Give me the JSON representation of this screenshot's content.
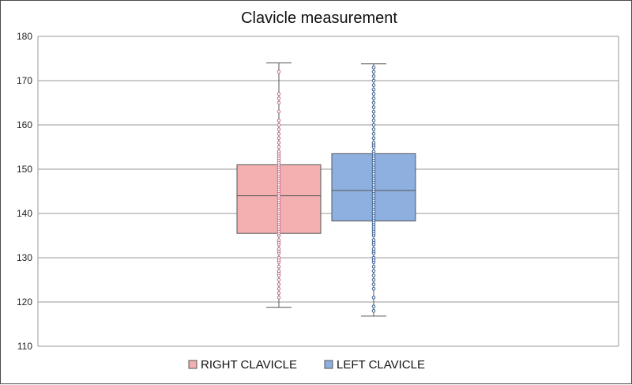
{
  "chart_data": {
    "type": "boxplot",
    "title": "Clavicle measurement",
    "xlabel": "",
    "ylabel": "",
    "ylim": [
      110,
      180
    ],
    "yticks": [
      110,
      120,
      130,
      140,
      150,
      160,
      170,
      180
    ],
    "grid": true,
    "legend_position": "bottom-center",
    "series": [
      {
        "name": "RIGHT CLAVICLE",
        "color": "#f4b0b0",
        "edge_color": "#555555",
        "point_color": "#c07090",
        "whisker_low": 118.8,
        "q1": 135.5,
        "median": 144.0,
        "q3": 151.0,
        "whisker_high": 174.0,
        "points": [
          121,
          122,
          123,
          124,
          125,
          126,
          126.5,
          127,
          128,
          129,
          129.5,
          130,
          131,
          131.5,
          132,
          133,
          133.5,
          134,
          135,
          135.5,
          136,
          136.5,
          137,
          137.5,
          138,
          138.5,
          139,
          139.5,
          140,
          140.5,
          141,
          141.5,
          142,
          142.5,
          143,
          143.5,
          144,
          144.5,
          145,
          145.5,
          146,
          146.5,
          147,
          147.5,
          148,
          148.5,
          149,
          149.5,
          150,
          150.5,
          151,
          151.5,
          152,
          152.5,
          153,
          153.5,
          154,
          155,
          156,
          157,
          158,
          159,
          160,
          161,
          163,
          165,
          166,
          167,
          172
        ]
      },
      {
        "name": "LEFT CLAVICLE",
        "color": "#8db0e0",
        "edge_color": "#555555",
        "point_color": "#3a5f8f",
        "whisker_low": 116.8,
        "q1": 138.3,
        "median": 145.2,
        "q3": 153.5,
        "whisker_high": 173.8,
        "points": [
          118,
          119,
          121,
          123,
          124,
          125,
          126,
          127,
          128,
          129,
          129.5,
          130,
          131,
          131.5,
          132,
          133,
          133.5,
          134,
          135,
          135.5,
          136,
          136.5,
          137,
          137.5,
          138,
          138.5,
          139,
          139.5,
          140,
          140.5,
          141,
          141.5,
          142,
          142.5,
          143,
          143.5,
          144,
          144.5,
          145,
          145.5,
          146,
          146.5,
          147,
          147.5,
          148,
          148.5,
          149,
          149.5,
          150,
          150.5,
          151,
          151.5,
          152,
          152.5,
          153,
          153.5,
          154,
          155,
          155.5,
          156,
          157,
          158,
          159,
          160,
          161,
          162,
          163,
          164,
          165,
          166,
          167,
          168,
          169,
          170,
          171,
          172,
          173
        ]
      }
    ]
  }
}
